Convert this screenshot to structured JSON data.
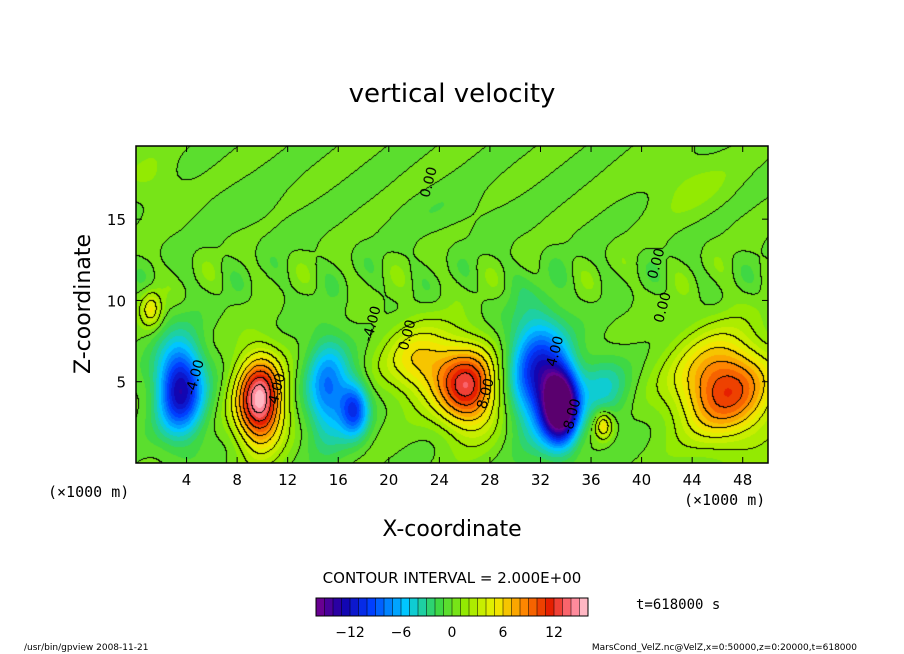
{
  "chart_data": {
    "type": "heatmap",
    "title": "vertical velocity",
    "xlabel": "X-coordinate",
    "ylabel": "Z-coordinate",
    "x_unit": "(×1000 m)",
    "y_unit": "(×1000 m)",
    "xlim": [
      0,
      50
    ],
    "ylim": [
      0,
      19.5
    ],
    "x_ticks": [
      4,
      8,
      12,
      16,
      20,
      24,
      28,
      32,
      36,
      40,
      44,
      48
    ],
    "y_ticks": [
      5,
      10,
      15
    ],
    "contour_interval_text": "CONTOUR INTERVAL = 2.000E+00",
    "time_text": "t=618000 s",
    "colorbar": {
      "min": -16,
      "max": 16,
      "ticks": [
        -12,
        -6,
        0,
        6,
        12
      ]
    },
    "contour_labels": [
      {
        "x": 23.5,
        "y": 17.2,
        "text": "0.00"
      },
      {
        "x": 5.0,
        "y": 5.2,
        "text": "-4.00"
      },
      {
        "x": 11.5,
        "y": 4.5,
        "text": "4.00"
      },
      {
        "x": 19.0,
        "y": 8.5,
        "text": "-4.00"
      },
      {
        "x": 21.8,
        "y": 7.8,
        "text": "0.00"
      },
      {
        "x": 28.0,
        "y": 4.2,
        "text": "8.00"
      },
      {
        "x": 33.5,
        "y": 6.8,
        "text": "4.00"
      },
      {
        "x": 34.8,
        "y": 2.8,
        "text": "-8.00"
      },
      {
        "x": 42.0,
        "y": 9.5,
        "text": "0.00"
      },
      {
        "x": 41.5,
        "y": 12.2,
        "text": "0.00"
      }
    ],
    "features": [
      {
        "x": 3.5,
        "z": 4.6,
        "sx": 1.3,
        "sz": 2.0,
        "w": -13
      },
      {
        "x": 1.2,
        "z": 9.5,
        "sx": 0.6,
        "sz": 0.8,
        "w": 5
      },
      {
        "x": 9.8,
        "z": 3.8,
        "sx": 1.3,
        "sz": 1.9,
        "w": 15.5
      },
      {
        "x": 15.2,
        "z": 4.5,
        "sx": 1.2,
        "sz": 2.2,
        "w": -8
      },
      {
        "x": 17.3,
        "z": 3.3,
        "sx": 0.8,
        "sz": 1.2,
        "w": -9
      },
      {
        "x": 22.5,
        "z": 6.2,
        "sx": 2.0,
        "sz": 1.6,
        "w": 6
      },
      {
        "x": 26.3,
        "z": 4.6,
        "sx": 1.7,
        "sz": 1.8,
        "w": 12
      },
      {
        "x": 31.8,
        "z": 5.5,
        "sx": 1.6,
        "sz": 2.5,
        "w": -11
      },
      {
        "x": 33.6,
        "z": 3.5,
        "sx": 1.0,
        "sz": 1.6,
        "w": -19
      },
      {
        "x": 37.0,
        "z": 4.6,
        "sx": 1.4,
        "sz": 1.4,
        "w": -4
      },
      {
        "x": 37.0,
        "z": 2.3,
        "sx": 0.5,
        "sz": 0.6,
        "w": 6
      },
      {
        "x": 46.6,
        "z": 4.6,
        "sx": 2.7,
        "sz": 2.2,
        "w": 11
      },
      {
        "x": 1.5,
        "z": 17.2,
        "sx": 1.5,
        "sz": 1.2,
        "w": 1.2
      },
      {
        "x": 43.5,
        "z": 17.2,
        "sx": 2.5,
        "sz": 1.4,
        "w": 1.2
      },
      {
        "x": 25.0,
        "z": 15.5,
        "sx": 3.0,
        "sz": 1.0,
        "w": -0.6
      },
      {
        "x": 9.0,
        "z": 15.5,
        "sx": 3.0,
        "sz": 1.2,
        "w": -0.5
      }
    ],
    "grid": false,
    "colormap": "rainbow"
  },
  "footer": {
    "left": "/usr/bin/gpview 2008-11-21",
    "right": "MarsCond_VelZ.nc@VelZ,x=0:50000,z=0:20000,t=618000"
  }
}
